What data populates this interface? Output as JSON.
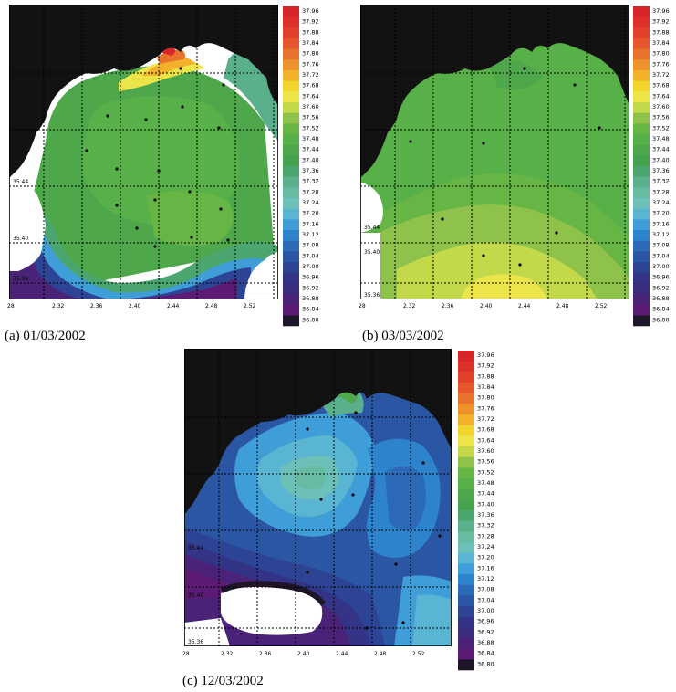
{
  "colorbar": {
    "labels": [
      "37.96",
      "37.92",
      "37.88",
      "37.84",
      "37.80",
      "37.76",
      "37.72",
      "37.68",
      "37.64",
      "37.60",
      "37.56",
      "37.52",
      "37.48",
      "37.44",
      "37.40",
      "37.36",
      "37.32",
      "37.28",
      "37.24",
      "37.20",
      "37.16",
      "37.12",
      "37.08",
      "37.04",
      "37.00",
      "36.96",
      "36.92",
      "36.88",
      "36.84",
      "36.80"
    ],
    "colors": [
      "#d7262a",
      "#dd3028",
      "#e2412a",
      "#e5562c",
      "#e8732c",
      "#ee922b",
      "#f3b12b",
      "#f1d42c",
      "#ece54a",
      "#c4d94a",
      "#8ec24a",
      "#67b645",
      "#58b048",
      "#4ea84b",
      "#45a24e",
      "#4ba56e",
      "#59b08a",
      "#67bba3",
      "#6cc0b7",
      "#5ab5d2",
      "#3f9ed8",
      "#2e83cd",
      "#2c69b6",
      "#2b56a3",
      "#2d4494",
      "#343486",
      "#3b2c7e",
      "#4a2379",
      "#5c1b74",
      "#1e1528"
    ]
  },
  "axis_ticks": {
    "lon": [
      "28",
      "2.32",
      "2.36",
      "2.40",
      "2.44",
      "2.48",
      "2.52"
    ],
    "lat": [
      "35.44",
      "35.40",
      "35.36"
    ]
  },
  "panels": [
    {
      "caption": "(a) 01/03/2002"
    },
    {
      "caption": "(b) 03/03/2002"
    },
    {
      "caption": "(c) 12/03/2002"
    }
  ]
}
